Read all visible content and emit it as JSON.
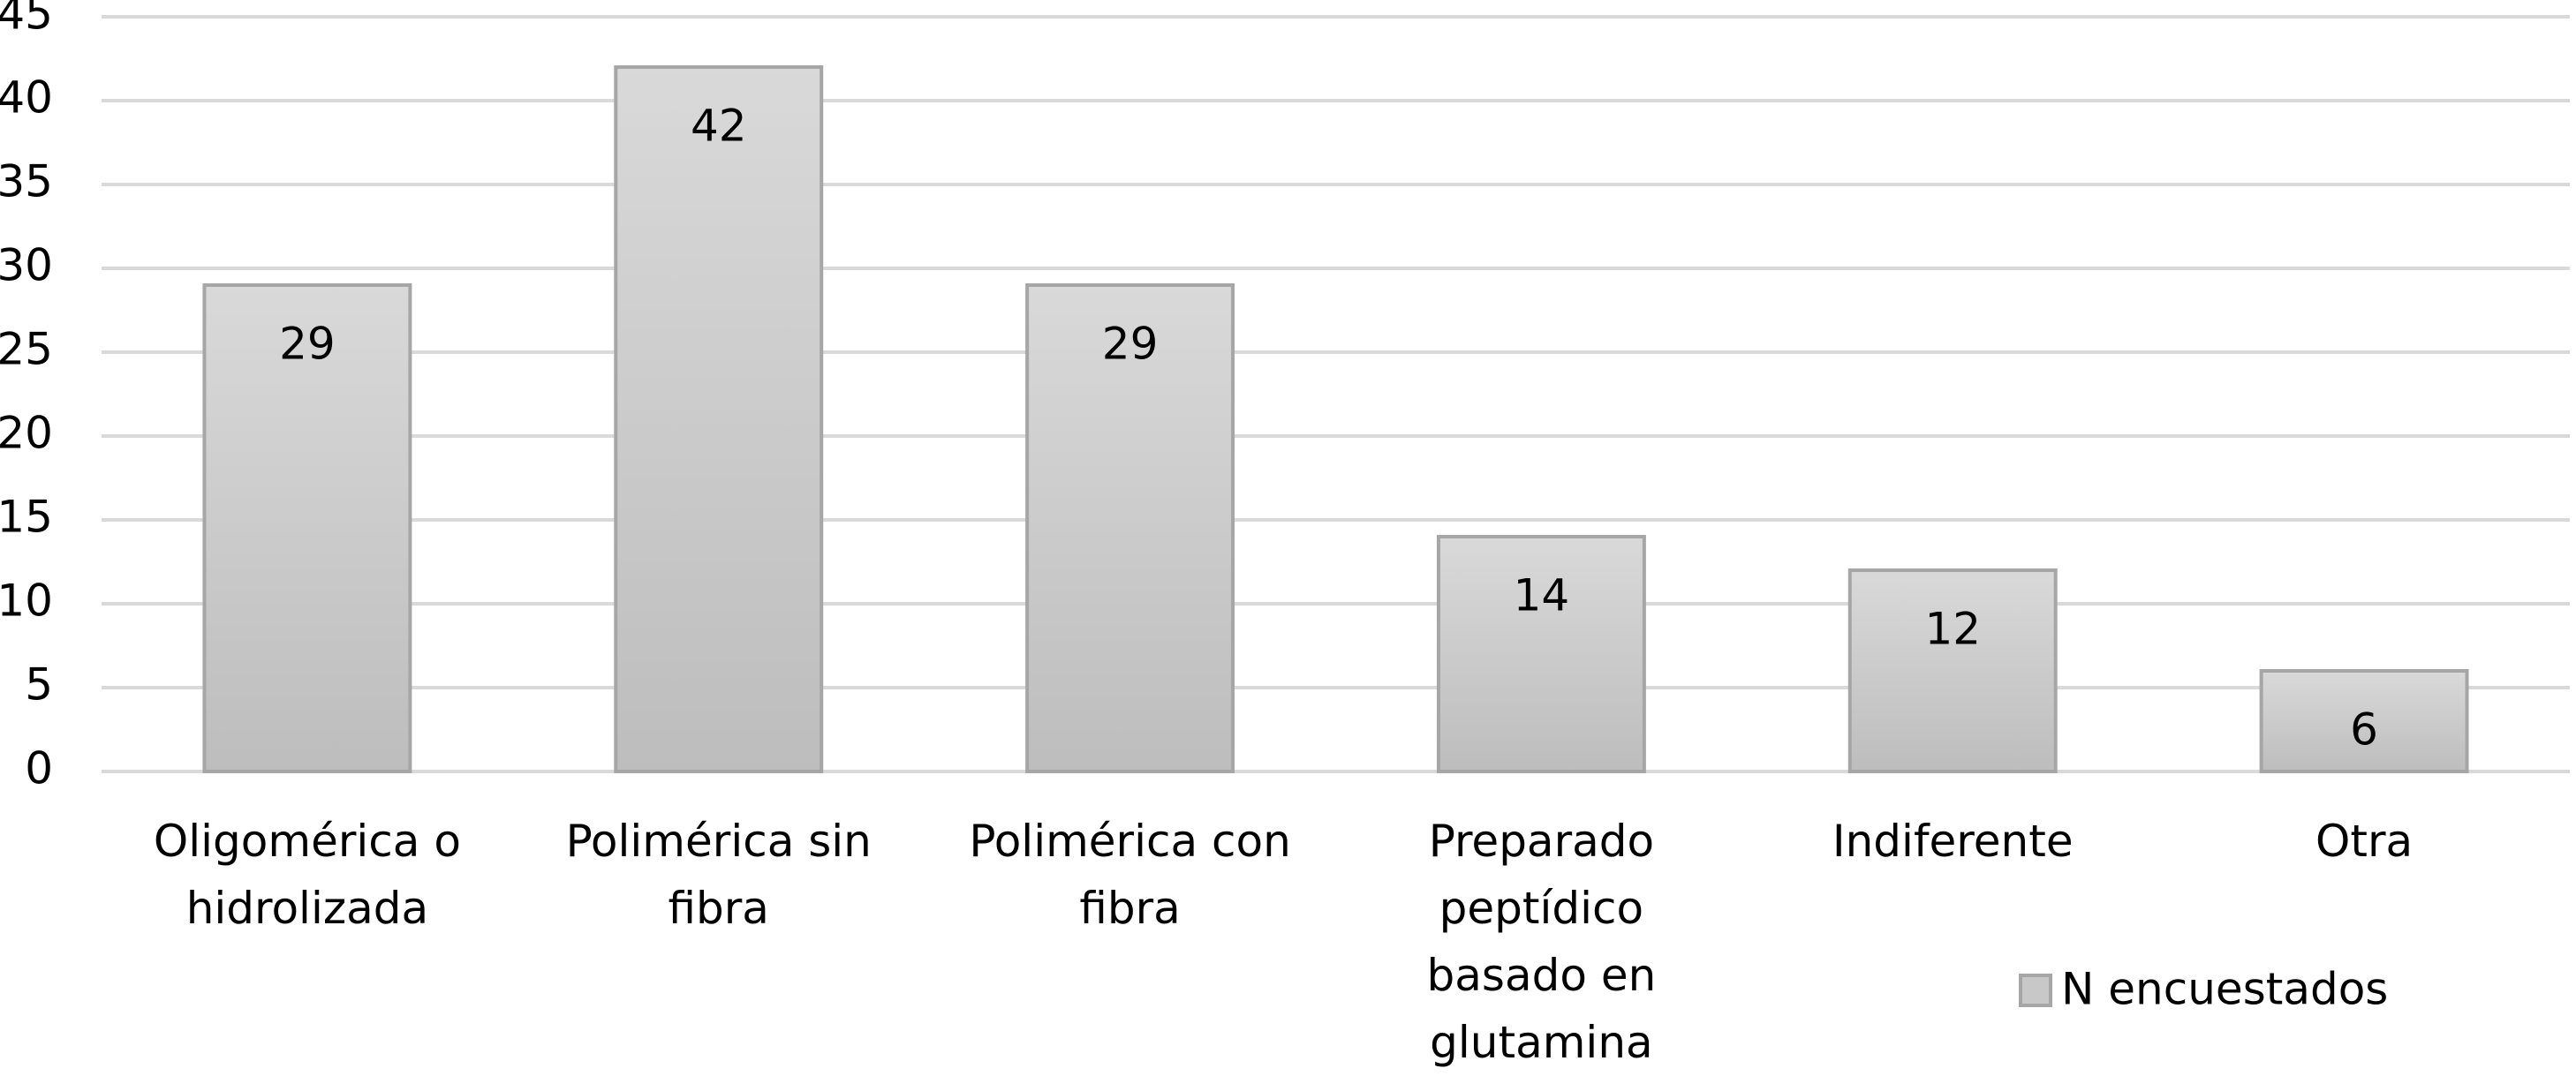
{
  "chart_data": {
    "type": "bar",
    "categories": [
      "Oligomérica o hidrolizada",
      "Polimérica sin fibra",
      "Polimérica con fibra",
      "Preparado peptídico basado en glutamina",
      "Indiferente",
      "Otra"
    ],
    "series": [
      {
        "name": "N encuestados",
        "color": "#c8c8c8",
        "values": [
          29,
          42,
          29,
          14,
          12,
          6
        ]
      }
    ],
    "ylim": [
      0,
      45
    ],
    "yticks": [
      0,
      5,
      10,
      15,
      20,
      25,
      30,
      35,
      40,
      45
    ],
    "grid": true,
    "legend": "bottom-right"
  }
}
